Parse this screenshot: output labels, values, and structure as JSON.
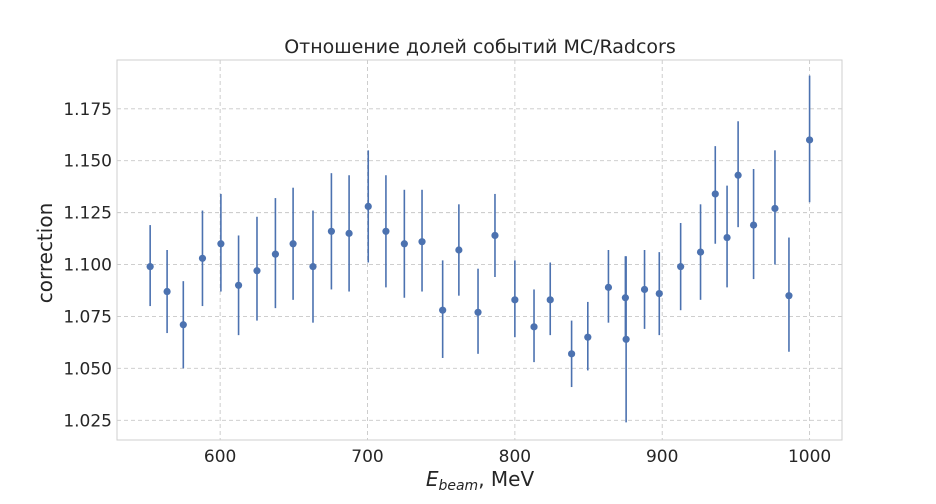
{
  "chart_data": {
    "type": "scatter",
    "title": "Отношение долей событий MC/Radcors",
    "xlabel_main": "E",
    "xlabel_sub": "beam",
    "xlabel_rest": ", MeV",
    "ylabel": "correction",
    "xlim": [
      530,
      1022
    ],
    "ylim": [
      1.0155,
      1.1985
    ],
    "xticks": [
      600,
      700,
      800,
      900,
      1000
    ],
    "yticks": [
      1.025,
      1.05,
      1.075,
      1.1,
      1.125,
      1.15,
      1.175
    ],
    "ytick_labels": [
      "1.025",
      "1.050",
      "1.075",
      "1.100",
      "1.125",
      "1.150",
      "1.175"
    ],
    "xtick_labels": [
      "600",
      "700",
      "800",
      "900",
      "1000"
    ],
    "grid": true,
    "marker_color": "#4c72b0",
    "points": [
      {
        "x": 552.5,
        "y": 1.099,
        "lo": 1.08,
        "hi": 1.119
      },
      {
        "x": 564.0,
        "y": 1.087,
        "lo": 1.067,
        "hi": 1.107
      },
      {
        "x": 575.0,
        "y": 1.071,
        "lo": 1.05,
        "hi": 1.092
      },
      {
        "x": 588.0,
        "y": 1.103,
        "lo": 1.08,
        "hi": 1.126
      },
      {
        "x": 600.5,
        "y": 1.11,
        "lo": 1.087,
        "hi": 1.134
      },
      {
        "x": 612.5,
        "y": 1.09,
        "lo": 1.066,
        "hi": 1.114
      },
      {
        "x": 625.0,
        "y": 1.097,
        "lo": 1.073,
        "hi": 1.123
      },
      {
        "x": 637.5,
        "y": 1.105,
        "lo": 1.079,
        "hi": 1.132
      },
      {
        "x": 649.5,
        "y": 1.11,
        "lo": 1.083,
        "hi": 1.137
      },
      {
        "x": 663.0,
        "y": 1.099,
        "lo": 1.072,
        "hi": 1.126
      },
      {
        "x": 675.5,
        "y": 1.116,
        "lo": 1.088,
        "hi": 1.144
      },
      {
        "x": 687.5,
        "y": 1.115,
        "lo": 1.087,
        "hi": 1.143
      },
      {
        "x": 700.5,
        "y": 1.128,
        "lo": 1.101,
        "hi": 1.155
      },
      {
        "x": 712.5,
        "y": 1.116,
        "lo": 1.089,
        "hi": 1.143
      },
      {
        "x": 725.0,
        "y": 1.11,
        "lo": 1.084,
        "hi": 1.136
      },
      {
        "x": 737.0,
        "y": 1.111,
        "lo": 1.087,
        "hi": 1.136
      },
      {
        "x": 751.0,
        "y": 1.078,
        "lo": 1.055,
        "hi": 1.102
      },
      {
        "x": 762.0,
        "y": 1.107,
        "lo": 1.085,
        "hi": 1.129
      },
      {
        "x": 775.0,
        "y": 1.077,
        "lo": 1.057,
        "hi": 1.098
      },
      {
        "x": 786.5,
        "y": 1.114,
        "lo": 1.094,
        "hi": 1.134
      },
      {
        "x": 800.0,
        "y": 1.083,
        "lo": 1.065,
        "hi": 1.102
      },
      {
        "x": 813.0,
        "y": 1.07,
        "lo": 1.053,
        "hi": 1.088
      },
      {
        "x": 824.0,
        "y": 1.083,
        "lo": 1.066,
        "hi": 1.101
      },
      {
        "x": 838.5,
        "y": 1.057,
        "lo": 1.041,
        "hi": 1.073
      },
      {
        "x": 849.5,
        "y": 1.065,
        "lo": 1.049,
        "hi": 1.082
      },
      {
        "x": 863.5,
        "y": 1.089,
        "lo": 1.072,
        "hi": 1.107
      },
      {
        "x": 875.0,
        "y": 1.084,
        "lo": 1.064,
        "hi": 1.104
      },
      {
        "x": 875.5,
        "y": 1.064,
        "lo": 1.024,
        "hi": 1.104
      },
      {
        "x": 888.0,
        "y": 1.088,
        "lo": 1.069,
        "hi": 1.107
      },
      {
        "x": 898.0,
        "y": 1.086,
        "lo": 1.066,
        "hi": 1.106
      },
      {
        "x": 912.5,
        "y": 1.099,
        "lo": 1.078,
        "hi": 1.12
      },
      {
        "x": 926.0,
        "y": 1.106,
        "lo": 1.083,
        "hi": 1.129
      },
      {
        "x": 936.0,
        "y": 1.134,
        "lo": 1.11,
        "hi": 1.157
      },
      {
        "x": 944.0,
        "y": 1.113,
        "lo": 1.089,
        "hi": 1.138
      },
      {
        "x": 951.5,
        "y": 1.143,
        "lo": 1.118,
        "hi": 1.169
      },
      {
        "x": 962.0,
        "y": 1.119,
        "lo": 1.093,
        "hi": 1.146
      },
      {
        "x": 976.5,
        "y": 1.127,
        "lo": 1.1,
        "hi": 1.155
      },
      {
        "x": 986.0,
        "y": 1.085,
        "lo": 1.058,
        "hi": 1.113
      },
      {
        "x": 1000.0,
        "y": 1.16,
        "lo": 1.13,
        "hi": 1.191
      }
    ]
  }
}
